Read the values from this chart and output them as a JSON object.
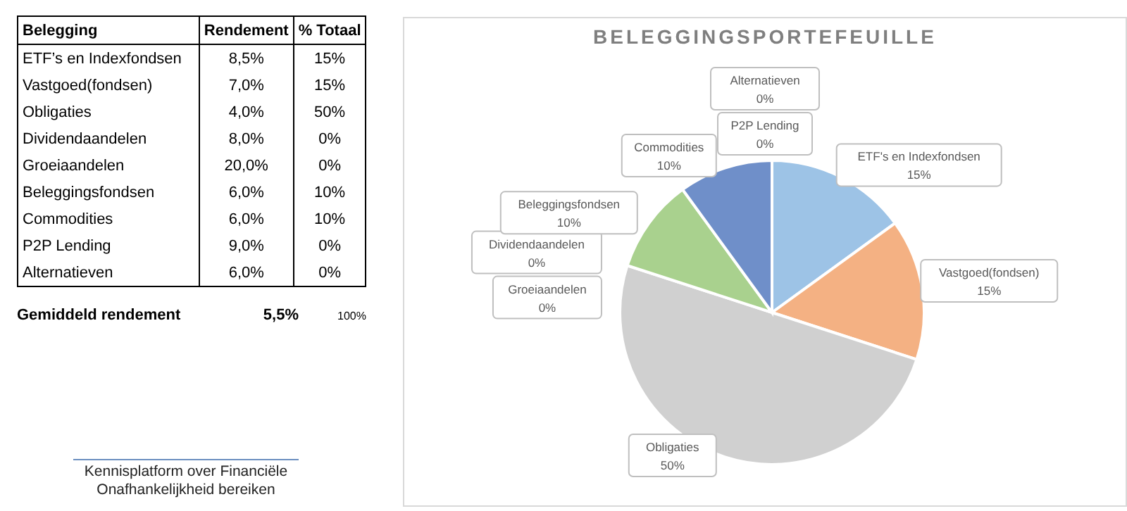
{
  "chart_data": [
    {
      "type": "other",
      "annotations": [
        "Belegging",
        "Rendement",
        "% Totaal",
        "ETF’s en Indexfondsen",
        "8,5%",
        "15%",
        "Vastgoed(fondsen)",
        "7,0%",
        "15%",
        "Obligaties",
        "4,0%",
        "50%",
        "Dividendaandelen",
        "8,0%",
        "0%",
        "Groeiaandelen",
        "20,0%",
        "0%",
        "Beleggingsfondsen",
        "6,0%",
        "10%",
        "Commodities",
        "6,0%",
        "10%",
        "P2P Lending",
        "9,0%",
        "0%",
        "Alternatieven",
        "6,0%",
        "0%",
        "Gemiddeld rendement",
        "5,5%",
        "100%",
        "Kennisplatform over Financiële Onafhankelijkheid bereiken"
      ]
    },
    {
      "type": "pie",
      "title": "BELEGGINGSPORTEFEUILLE",
      "categories": [
        "ETF's en Indexfondsen",
        "Vastgoed(fondsen)",
        "Obligaties",
        "Dividendaandelen",
        "Groeiaandelen",
        "Beleggingsfondsen",
        "Commodities",
        "P2P Lending",
        "Alternatieven"
      ],
      "values": [
        15,
        15,
        50,
        0,
        0,
        10,
        10,
        0,
        0
      ],
      "value_labels": [
        "15%",
        "15%",
        "50%",
        "0%",
        "0%",
        "10%",
        "10%",
        "0%",
        "0%"
      ],
      "colors": [
        "#9dc3e6",
        "#f4b183",
        "#d0d0d0",
        "#ffd966",
        "#8faadc",
        "#a9d18e",
        "#6f8fc9",
        "#c55a11",
        "#b4c7e7"
      ]
    }
  ]
}
